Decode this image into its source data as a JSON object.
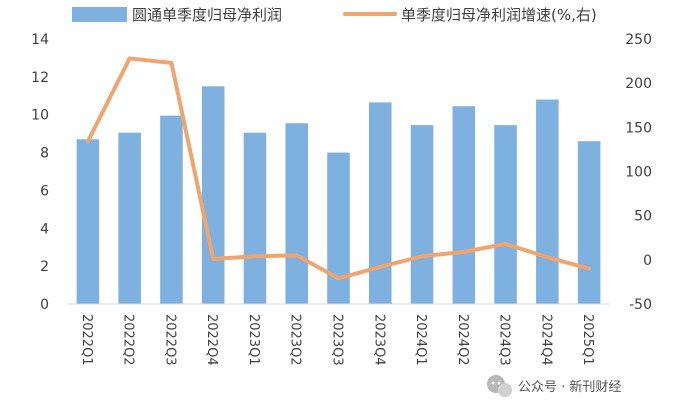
{
  "chart_data": {
    "type": "bar",
    "categories": [
      "2022Q1",
      "2022Q2",
      "2022Q3",
      "2022Q4",
      "2023Q1",
      "2023Q2",
      "2023Q3",
      "2023Q4",
      "2024Q1",
      "2024Q2",
      "2024Q3",
      "2024Q4",
      "2025Q1"
    ],
    "series": [
      {
        "name": "圆通单季度归母净利润",
        "type": "bar",
        "axis": "left",
        "color": "#7EB0E0",
        "values": [
          8.7,
          9.05,
          9.95,
          11.5,
          9.05,
          9.55,
          8.0,
          10.65,
          9.45,
          10.45,
          9.45,
          10.8,
          8.6
        ]
      },
      {
        "name": "单季度归母净利润增速(%,右)",
        "type": "line",
        "axis": "right",
        "color": "#F0A46E",
        "values": [
          134,
          228,
          223,
          1,
          4,
          5,
          -21,
          -8,
          4,
          9,
          18,
          3,
          -10
        ]
      }
    ],
    "left_axis": {
      "min": 0,
      "max": 14,
      "step": 2,
      "ticks": [
        "0",
        "2",
        "4",
        "6",
        "8",
        "10",
        "12",
        "14"
      ]
    },
    "right_axis": {
      "min": -50,
      "max": 250,
      "step": 50,
      "ticks": [
        "-50",
        "0",
        "50",
        "100",
        "150",
        "200",
        "250"
      ]
    },
    "legend_position": "top",
    "grid": false
  },
  "watermark": {
    "text": "公众号 · 新刊财经",
    "icon": "wechat-icon"
  }
}
